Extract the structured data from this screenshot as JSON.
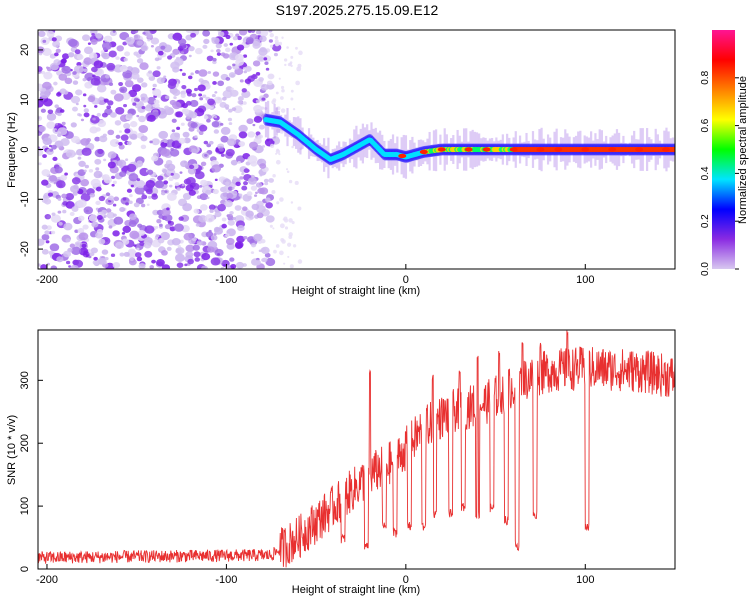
{
  "title": "S197.2025.275.15.09.E12",
  "chart_data": [
    {
      "type": "heatmap",
      "xlabel": "Height of straight line (km)",
      "ylabel": "Frequency (Hz)",
      "xlim": [
        -205,
        150
      ],
      "ylim": [
        -24,
        24
      ],
      "xticks": [
        -200,
        -100,
        0,
        100
      ],
      "yticks": [
        -20,
        -10,
        0,
        10,
        20
      ],
      "colorbar": {
        "label": "Normalized spectral amplitude",
        "ticks": [
          0.0,
          0.2,
          0.4,
          0.6,
          0.8
        ],
        "stops": [
          "#d8c8f0",
          "#8a2be2",
          "#0000ff",
          "#00e5ff",
          "#00ff00",
          "#ffff00",
          "#ff8000",
          "#ff0000",
          "#ff1493"
        ]
      },
      "trace": {
        "x": [
          -78,
          -70,
          -60,
          -50,
          -42,
          -35,
          -30,
          -20,
          -12,
          -5,
          0,
          10,
          20,
          40,
          60,
          80,
          100,
          120,
          150
        ],
        "y": [
          6,
          5.5,
          3,
          0,
          -2,
          -1,
          0,
          2,
          -1,
          -1,
          -1.5,
          -0.5,
          0,
          0,
          0,
          0,
          0,
          0,
          0
        ]
      },
      "noise_region": {
        "x_start": -205,
        "x_end": -75
      }
    },
    {
      "type": "line",
      "xlabel": "Height of straight line (km)",
      "ylabel": "SNR (10 * v/v)",
      "xlim": [
        -205,
        150
      ],
      "ylim": [
        0,
        380
      ],
      "xticks": [
        -200,
        -100,
        0,
        100
      ],
      "yticks": [
        0,
        100,
        200,
        300
      ],
      "color": "#e83030",
      "baseline": [
        {
          "x": -205,
          "y": 18
        },
        {
          "x": -75,
          "y": 22
        },
        {
          "x": -60,
          "y": 50
        },
        {
          "x": -40,
          "y": 100
        },
        {
          "x": -20,
          "y": 150
        },
        {
          "x": -5,
          "y": 175
        },
        {
          "x": 10,
          "y": 225
        },
        {
          "x": 25,
          "y": 250
        },
        {
          "x": 45,
          "y": 265
        },
        {
          "x": 65,
          "y": 300
        },
        {
          "x": 80,
          "y": 315
        },
        {
          "x": 100,
          "y": 320
        },
        {
          "x": 130,
          "y": 315
        },
        {
          "x": 150,
          "y": 305
        }
      ],
      "spikes_up": [
        {
          "x": -20,
          "y": 320
        },
        {
          "x": 15,
          "y": 310
        },
        {
          "x": 30,
          "y": 320
        },
        {
          "x": 40,
          "y": 340
        },
        {
          "x": 52,
          "y": 350
        },
        {
          "x": 65,
          "y": 360
        },
        {
          "x": 75,
          "y": 360
        },
        {
          "x": 90,
          "y": 380
        }
      ],
      "dips": [
        {
          "x": -35,
          "y": 40
        },
        {
          "x": -22,
          "y": 30
        },
        {
          "x": -12,
          "y": 60
        },
        {
          "x": -6,
          "y": 50
        },
        {
          "x": 2,
          "y": 60
        },
        {
          "x": 10,
          "y": 60
        },
        {
          "x": 16,
          "y": 80
        },
        {
          "x": 25,
          "y": 80
        },
        {
          "x": 32,
          "y": 90
        },
        {
          "x": 40,
          "y": 80
        },
        {
          "x": 48,
          "y": 90
        },
        {
          "x": 56,
          "y": 70
        },
        {
          "x": 62,
          "y": 30
        },
        {
          "x": 72,
          "y": 80
        },
        {
          "x": 101,
          "y": 60
        }
      ]
    }
  ]
}
